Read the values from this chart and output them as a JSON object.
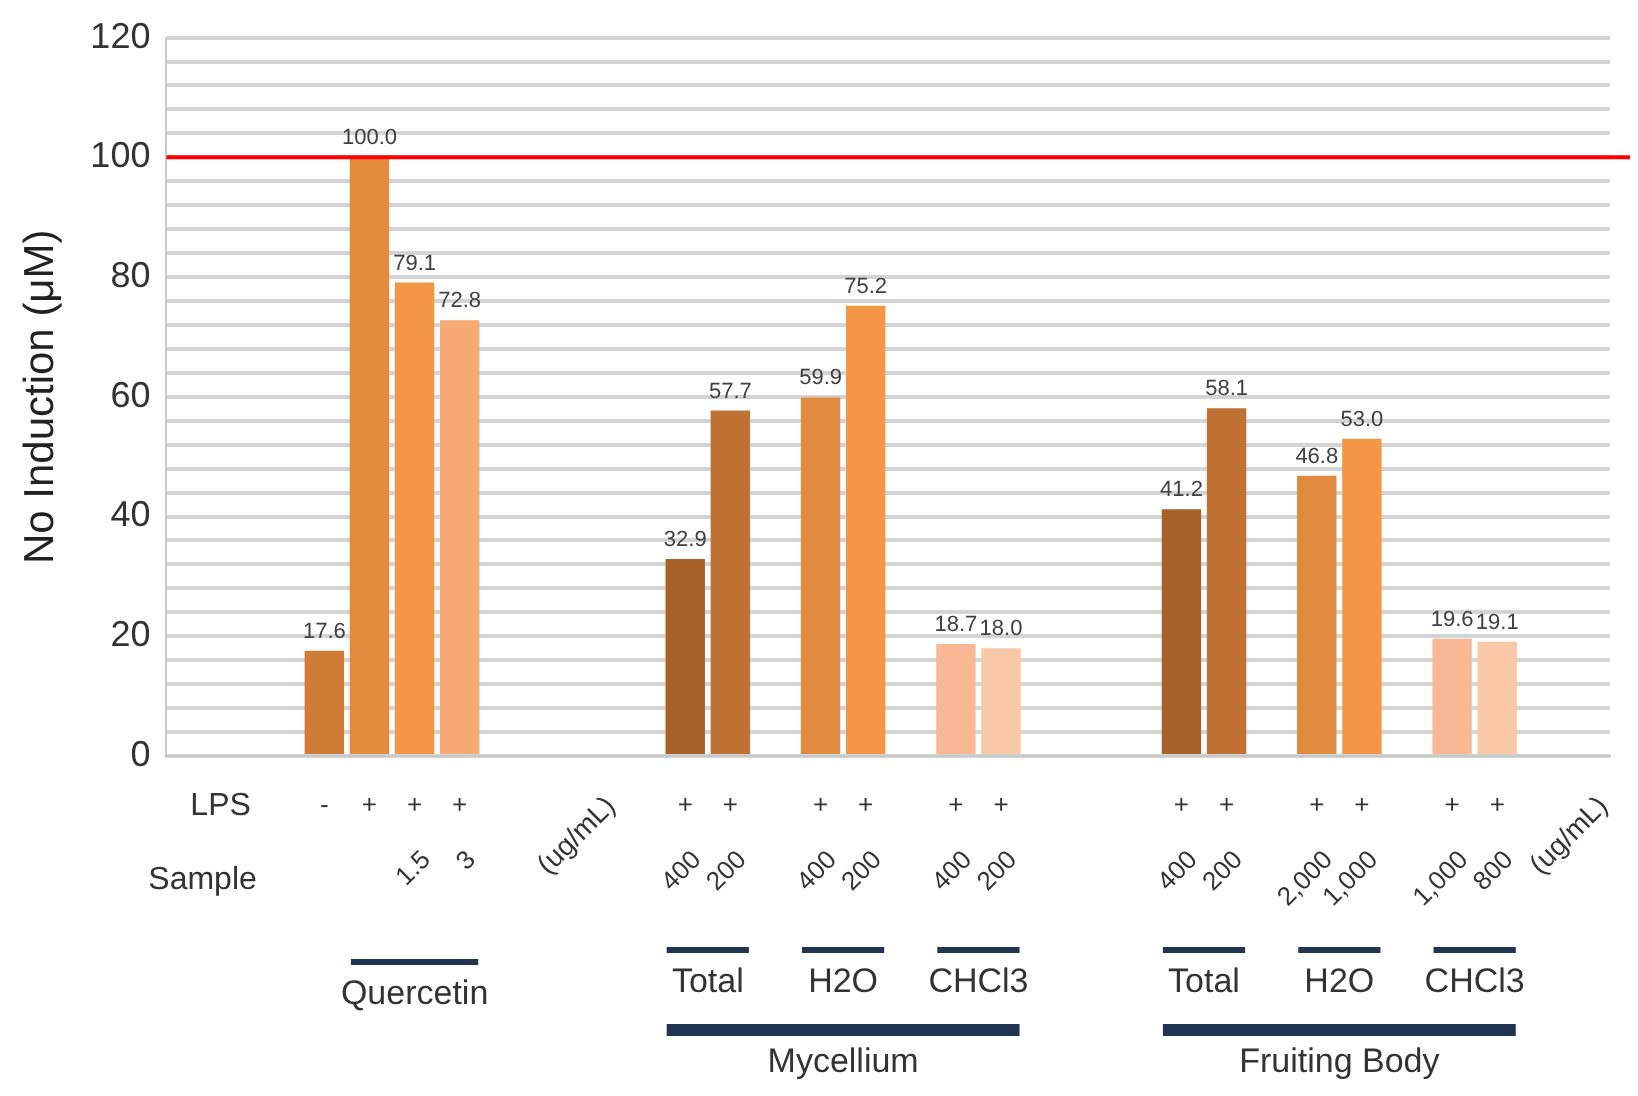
{
  "chart_data": {
    "type": "bar",
    "ylabel": "No Induction (μM)",
    "categories": [
      null,
      null,
      null,
      "-",
      "+",
      "+\n1.5",
      "+\n3",
      null,
      null,
      null,
      null,
      "+\n400",
      "+\n200",
      null,
      "+\n400",
      "+\n200",
      null,
      "+\n400",
      "+\n200",
      null,
      null,
      null,
      "+\n400",
      "+\n200",
      null,
      "+\n2,000",
      "+\n1,000",
      null,
      "+\n1,000",
      "+\n800",
      null,
      null
    ],
    "values": [
      null,
      null,
      null,
      17.6,
      100.0,
      79.1,
      72.8,
      null,
      null,
      null,
      null,
      32.9,
      57.7,
      null,
      59.9,
      75.2,
      null,
      18.7,
      18.0,
      null,
      null,
      null,
      41.2,
      58.1,
      null,
      46.8,
      53.0,
      null,
      19.6,
      19.1,
      null,
      null
    ],
    "value_labels": [
      null,
      null,
      null,
      "17.6",
      "100.0",
      "79.1",
      "72.8",
      null,
      null,
      null,
      null,
      "32.9",
      "57.7",
      null,
      "59.9",
      "75.2",
      null,
      "18.7",
      "18.0",
      null,
      null,
      null,
      "41.2",
      "58.1",
      null,
      "46.8",
      "53.0",
      null,
      "19.6",
      "19.1",
      null,
      null
    ],
    "colors": [
      null,
      null,
      null,
      "#d07b36",
      "#e38a3c",
      "#f39646",
      "#f5aa74",
      null,
      null,
      null,
      null,
      "#a9612a",
      "#c07234",
      null,
      "#e08a40",
      "#f39646",
      null,
      "#f8b896",
      "#f8c8a8",
      null,
      null,
      null,
      "#a9612a",
      "#c07234",
      null,
      "#e08a40",
      "#f39646",
      null,
      "#f8b896",
      "#f8c8a8",
      null,
      null
    ],
    "ylim": [
      0,
      120
    ],
    "yticks": [
      0,
      {
        "value": 4,
        "label": null
      },
      {
        "value": 8,
        "label": null
      },
      {
        "value": 12,
        "label": null
      },
      {
        "value": 16,
        "label": null
      },
      20,
      {
        "value": 24,
        "label": null
      },
      {
        "value": 28,
        "label": null
      },
      {
        "value": 32,
        "label": null
      },
      {
        "value": 36,
        "label": null
      },
      40,
      {
        "value": 44,
        "label": null
      },
      {
        "value": 48,
        "label": null
      },
      {
        "value": 52,
        "label": null
      },
      {
        "value": 56,
        "label": null
      },
      60,
      {
        "value": 64,
        "label": null
      },
      {
        "value": 68,
        "label": null
      },
      {
        "value": 72,
        "label": null
      },
      {
        "value": 76,
        "label": null
      },
      80,
      {
        "value": 84,
        "label": null
      },
      {
        "value": 88,
        "label": null
      },
      {
        "value": 92,
        "label": null
      },
      {
        "value": 96,
        "label": null
      },
      100,
      {
        "value": 104,
        "label": null
      },
      {
        "value": 108,
        "label": null
      },
      {
        "value": 112,
        "label": null
      },
      {
        "value": 116,
        "label": null
      },
      120
    ],
    "grid": "y",
    "ref_lines": [
      {
        "axis": "y",
        "value": 100,
        "color": "#ff0000"
      }
    ],
    "annotations": [
      "LPS",
      "Sample",
      "(ug/mL)",
      "(ug/mL)",
      "Quercetin",
      "Total",
      "H2O",
      "CHCl3",
      "Total",
      "H2O",
      "CHCl3",
      "Mycellium",
      "Fruiting Body"
    ]
  }
}
